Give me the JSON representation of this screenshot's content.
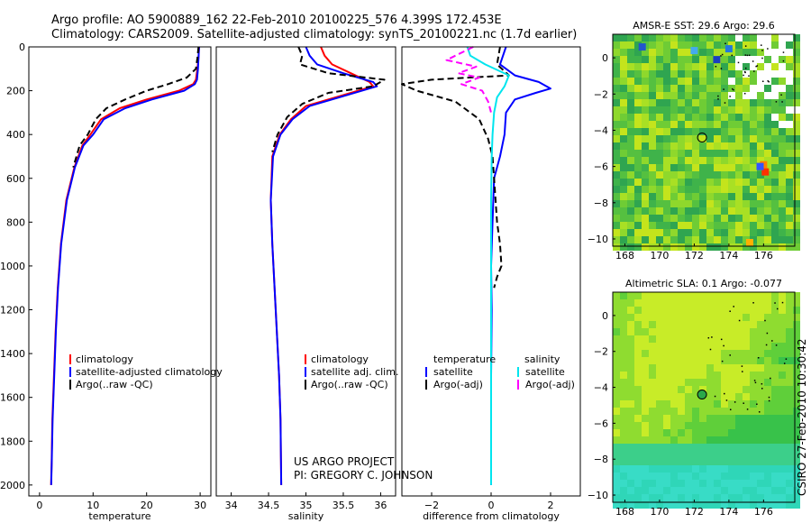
{
  "header": {
    "line1": "Argo profile: AO 5900889_162 22-Feb-2010 20100225_576 4.399S 172.453E",
    "line2": "Climatology: CARS2009. Satellite-adjusted climatology: synTS_20100221.nc (1.7d earlier)"
  },
  "credit": {
    "line1": "US ARGO PROJECT",
    "line2": "PI: GREGORY C. JOHNSON",
    "side": "CSIRO 27-Feb-2010 10:30:42"
  },
  "colors": {
    "climatology": "#ff0000",
    "satellite": "#0000ff",
    "argo": "#000000",
    "salinity_sat": "#00e5ee",
    "salinity_argo": "#ff00ff"
  },
  "chart_data": [
    {
      "type": "line",
      "id": "temperature",
      "xlabel": "temperature",
      "ylabel": "",
      "xlim": [
        -2,
        32
      ],
      "ylim": [
        2050,
        0
      ],
      "xticks": [
        0,
        10,
        20,
        30
      ],
      "yticks": [
        0,
        200,
        400,
        600,
        800,
        1000,
        1200,
        1400,
        1600,
        1800,
        2000
      ],
      "legend": [
        "climatology",
        "satellite-adjusted climatology",
        "Argo(..raw -QC)"
      ],
      "series": [
        {
          "name": "climatology",
          "color": "#ff0000",
          "dash": false,
          "x": [
            29.8,
            29.7,
            29.5,
            29.2,
            28.7,
            26.0,
            20.0,
            15.0,
            11.5,
            9.5,
            8.0,
            6.5,
            5.0,
            4.0,
            3.4,
            3.0,
            2.7,
            2.4,
            2.25,
            2.15
          ],
          "y": [
            0,
            50,
            100,
            150,
            170,
            200,
            240,
            280,
            330,
            400,
            450,
            550,
            700,
            900,
            1100,
            1300,
            1500,
            1700,
            1900,
            2000
          ]
        },
        {
          "name": "satellite-adjusted climatology",
          "color": "#0000ff",
          "dash": false,
          "x": [
            29.8,
            29.7,
            29.6,
            29.4,
            29.0,
            27.0,
            21.0,
            16.0,
            12.0,
            10.0,
            8.2,
            6.6,
            5.1,
            4.05,
            3.45,
            3.05,
            2.75,
            2.45,
            2.28,
            2.18
          ],
          "y": [
            0,
            50,
            100,
            150,
            170,
            200,
            240,
            280,
            330,
            400,
            450,
            550,
            700,
            900,
            1100,
            1300,
            1500,
            1700,
            1900,
            2000
          ]
        },
        {
          "name": "Argo(..raw -QC)",
          "color": "#000000",
          "dash": true,
          "x": [
            29.7,
            29.5,
            29.2,
            27.5,
            24.0,
            20.0,
            16.0,
            12.5,
            10.5,
            9.0,
            7.5,
            6.3
          ],
          "y": [
            0,
            50,
            100,
            140,
            170,
            200,
            240,
            280,
            330,
            400,
            450,
            550
          ]
        }
      ]
    },
    {
      "type": "line",
      "id": "salinity",
      "xlabel": "salinity",
      "ylabel": "",
      "xlim": [
        33.8,
        36.2
      ],
      "ylim": [
        2050,
        0
      ],
      "xticks": [
        34,
        34.5,
        35,
        35.5,
        36
      ],
      "xticklabels": [
        "34",
        "34.5",
        "35",
        "35.5",
        "36"
      ],
      "legend": [
        "climatology",
        "satellite adj. clim.",
        "Argo(..raw -QC)"
      ],
      "series": [
        {
          "name": "climatology",
          "color": "#ff0000",
          "dash": false,
          "x": [
            35.2,
            35.25,
            35.35,
            35.6,
            35.85,
            35.9,
            35.5,
            35.0,
            34.8,
            34.65,
            34.55,
            34.53,
            34.55,
            34.58,
            34.61,
            34.64,
            34.66,
            34.67
          ],
          "y": [
            0,
            40,
            80,
            120,
            160,
            180,
            220,
            270,
            330,
            400,
            500,
            700,
            900,
            1100,
            1300,
            1500,
            1700,
            2000
          ]
        },
        {
          "name": "satellite adj. clim.",
          "color": "#0000ff",
          "dash": false,
          "x": [
            35.0,
            35.05,
            35.15,
            35.5,
            35.9,
            35.95,
            35.55,
            35.05,
            34.82,
            34.66,
            34.56,
            34.53,
            34.55,
            34.58,
            34.61,
            34.64,
            34.66,
            34.67
          ],
          "y": [
            0,
            40,
            80,
            120,
            160,
            180,
            220,
            270,
            330,
            400,
            500,
            700,
            900,
            1100,
            1300,
            1500,
            1700,
            2000
          ]
        },
        {
          "name": "Argo(..raw -QC)",
          "color": "#000000",
          "dash": true,
          "x": [
            34.9,
            34.95,
            34.92,
            35.3,
            36.05,
            35.9,
            35.3,
            34.95,
            34.75,
            34.62,
            34.55
          ],
          "y": [
            0,
            40,
            80,
            120,
            150,
            180,
            210,
            260,
            320,
            400,
            480
          ]
        }
      ]
    },
    {
      "type": "line",
      "id": "difference",
      "xlabel": "difference from climatology",
      "ylabel": "",
      "xlim": [
        -3,
        3
      ],
      "ylim": [
        2050,
        0
      ],
      "xticks": [
        -2,
        0,
        2
      ],
      "xticklabels": [
        "−2",
        "0",
        "2"
      ],
      "legend_titles": [
        "temperature",
        "salinity"
      ],
      "legend": [
        "satellite",
        "Argo(-adj)",
        "satellite",
        "Argo(-adj)"
      ],
      "series": [
        {
          "name": "temperature satellite",
          "color": "#0000ff",
          "dash": false,
          "x": [
            0.5,
            0.3,
            0.8,
            1.6,
            2.0,
            1.5,
            0.8,
            0.5,
            0.45,
            0.3,
            0.1,
            0.05,
            0.0,
            0.02,
            0.0,
            0.0
          ],
          "y": [
            0,
            80,
            130,
            160,
            190,
            210,
            240,
            300,
            400,
            500,
            600,
            800,
            1000,
            1200,
            1500,
            2000
          ]
        },
        {
          "name": "temperature Argo(-adj)",
          "color": "#000000",
          "dash": true,
          "x": [
            0.3,
            0.2,
            0.6,
            -2.0,
            -3.0,
            -2.5,
            -1.2,
            -0.4,
            -0.1,
            0.05,
            0.1,
            0.2,
            0.3,
            0.35,
            0.2,
            0.1
          ],
          "y": [
            0,
            80,
            130,
            150,
            170,
            200,
            250,
            330,
            420,
            500,
            600,
            800,
            900,
            1000,
            1050,
            1100
          ]
        },
        {
          "name": "salinity satellite",
          "color": "#00e5ee",
          "dash": false,
          "x": [
            -0.8,
            -0.7,
            -0.2,
            0.6,
            0.45,
            0.2,
            0.1,
            0.05,
            0.02,
            0.0,
            0.0,
            0.0
          ],
          "y": [
            0,
            40,
            80,
            130,
            180,
            230,
            300,
            400,
            500,
            700,
            1000,
            2000
          ]
        },
        {
          "name": "salinity Argo(-adj)",
          "color": "#ff00ff",
          "dash": true,
          "x": [
            -0.6,
            -1.5,
            -0.5,
            -1.1,
            -0.4,
            -1.0,
            -0.3,
            -0.1,
            0.0
          ],
          "y": [
            0,
            60,
            90,
            120,
            140,
            170,
            200,
            250,
            300
          ]
        }
      ]
    },
    {
      "type": "heatmap",
      "id": "sst_map",
      "title": "AMSR-E SST: 29.6 Argo: 29.6",
      "xlim": [
        167.3,
        177.8
      ],
      "ylim": [
        -10.4,
        1.3
      ],
      "xticks": [
        168,
        170,
        172,
        174,
        176
      ],
      "yticks": [
        0,
        -2,
        -4,
        -6,
        -8,
        -10
      ],
      "yticklabels": [
        "0",
        "−2",
        "−4",
        "−6",
        "−8",
        "−10"
      ],
      "argo_position": {
        "lon": 172.45,
        "lat": -4.4
      }
    },
    {
      "type": "heatmap",
      "id": "sla_map",
      "title": "Altimetric SLA: 0.1 Argo: -0.077",
      "xlim": [
        167.3,
        177.8
      ],
      "ylim": [
        -10.4,
        1.3
      ],
      "xticks": [
        168,
        170,
        172,
        174,
        176
      ],
      "yticks": [
        0,
        -2,
        -4,
        -6,
        -8,
        -10
      ],
      "yticklabels": [
        "0",
        "−2",
        "−4",
        "−6",
        "−8",
        "−10"
      ],
      "argo_position": {
        "lon": 172.45,
        "lat": -4.4
      }
    }
  ]
}
